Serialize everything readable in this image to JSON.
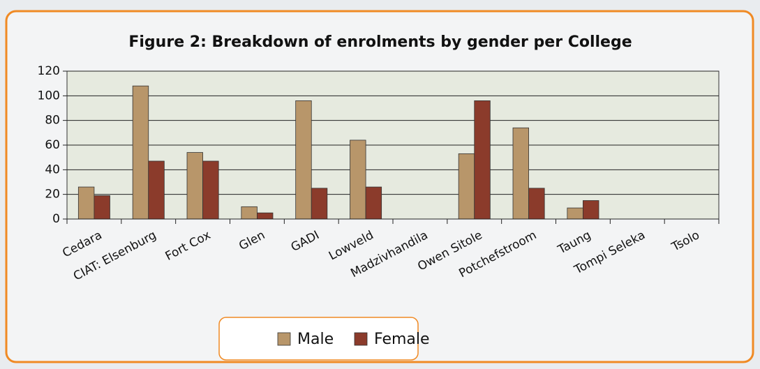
{
  "chart_data": {
    "type": "bar",
    "title": "Figure 2: Breakdown of enrolments by gender per College",
    "categories": [
      "Cedara",
      "CIAT: Elsenburg",
      "Fort Cox",
      "Glen",
      "GADI",
      "Lowveld",
      "Madzivhandila",
      "Owen Sitole",
      "Potchefstroom",
      "Taung",
      "Tompi Seleka",
      "Tsolo"
    ],
    "series": [
      {
        "name": "Male",
        "color": "#b8966a",
        "values": [
          26,
          108,
          54,
          10,
          96,
          64,
          0,
          53,
          74,
          9,
          0,
          0
        ]
      },
      {
        "name": "Female",
        "color": "#8b3b2b",
        "values": [
          19,
          47,
          47,
          5,
          25,
          26,
          0,
          96,
          25,
          15,
          0,
          0
        ]
      }
    ],
    "ylim": [
      0,
      120
    ],
    "yticks": [
      0,
      20,
      40,
      60,
      80,
      100,
      120
    ],
    "grid": true,
    "legend": "bottom"
  }
}
